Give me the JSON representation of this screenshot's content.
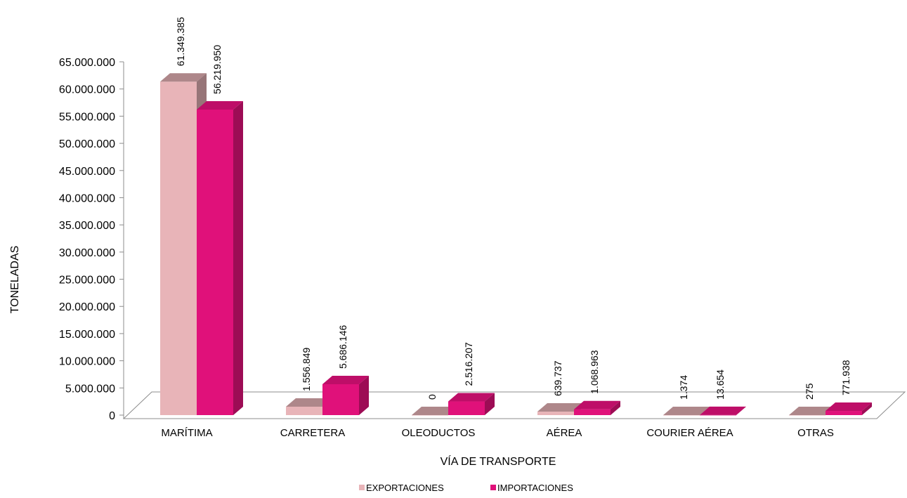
{
  "chart_data": {
    "type": "bar",
    "xlabel": "VÍA DE TRANSPORTE",
    "ylabel": "TONELADAS",
    "ylim": [
      0,
      65000000
    ],
    "grid": false,
    "legend": "bottom",
    "categories": [
      "MARÍTIMA",
      "CARRETERA",
      "OLEODUCTOS",
      "AÉREA",
      "COURIER AÉREA",
      "OTRAS"
    ],
    "series": [
      {
        "name": "EXPORTACIONES",
        "color": "#e8b4b8",
        "values": [
          61349385,
          1556849,
          0,
          639737,
          1374,
          275
        ],
        "labels": [
          "61.349.385",
          "1.556.849",
          "0",
          "639.737",
          "1.374",
          "275"
        ]
      },
      {
        "name": "IMPORTACIONES",
        "color": "#e0117a",
        "values": [
          56219950,
          5686146,
          2516207,
          1068963,
          13654,
          771938
        ],
        "labels": [
          "56.219.950",
          "5.686.146",
          "2.516.207",
          "1.068.963",
          "13.654",
          "771.938"
        ]
      }
    ],
    "yticks": [
      "0",
      "5.000.000",
      "10.000.000",
      "15.000.000",
      "20.000.000",
      "25.000.000",
      "30.000.000",
      "35.000.000",
      "40.000.000",
      "45.000.000",
      "50.000.000",
      "55.000.000",
      "60.000.000",
      "65.000.000"
    ]
  }
}
